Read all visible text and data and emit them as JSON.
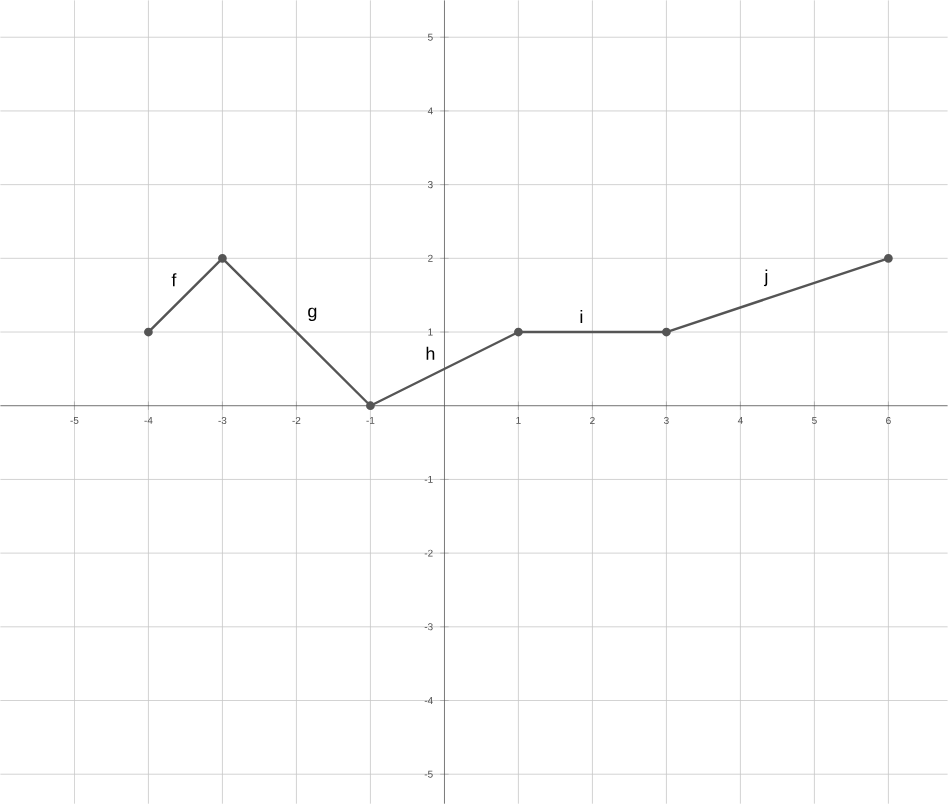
{
  "chart_data": {
    "type": "line",
    "x": [
      -4,
      -3,
      -1,
      1,
      3,
      6
    ],
    "series": [
      {
        "color": "#555555",
        "values": [
          1,
          2,
          0,
          1,
          1,
          2
        ]
      }
    ],
    "xlim": [
      -6,
      6.8
    ],
    "ylim": [
      -5.4,
      5.5
    ],
    "xticks": [
      -5,
      -4,
      -3,
      -2,
      -1,
      1,
      2,
      3,
      4,
      5,
      6
    ],
    "yticks": [
      -5,
      -4,
      -3,
      -2,
      -1,
      1,
      2,
      3,
      4,
      5
    ],
    "grid": true,
    "marker": "circle",
    "line_style": "solid",
    "annotations": [
      "f",
      "g",
      "h",
      "i",
      "j"
    ]
  }
}
